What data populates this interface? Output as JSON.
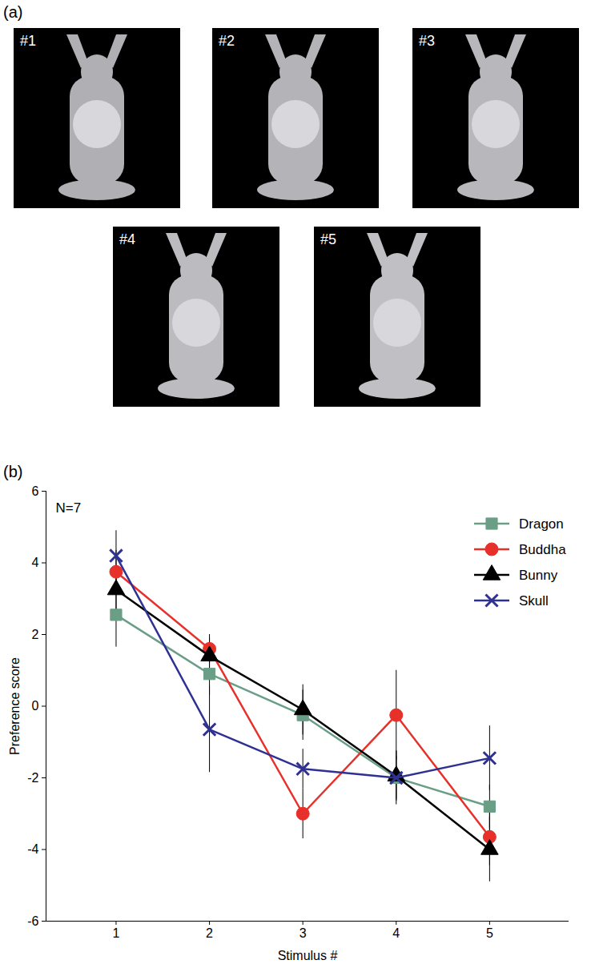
{
  "panel_labels": [
    "(a)",
    "(b)"
  ],
  "stimuli": [
    "#1",
    "#2",
    "#3",
    "#4",
    "#5"
  ],
  "chart_data": {
    "type": "line",
    "annotation": "N=7",
    "x_label": "Stimulus #",
    "y_label": "Preference score",
    "x": [
      1,
      2,
      3,
      4,
      5
    ],
    "xlim": [
      0.25,
      5.85
    ],
    "xticks": [
      1,
      2,
      3,
      4,
      5
    ],
    "ylim": [
      -6,
      6
    ],
    "yticks": [
      -6,
      -4,
      -2,
      0,
      2,
      4,
      6
    ],
    "grid": false,
    "legend": "upper right",
    "series": [
      {
        "name": "Dragon",
        "color": "#6a9e86",
        "marker": "square",
        "values": [
          2.55,
          0.9,
          -0.25,
          -2.0,
          -2.8
        ],
        "errors": [
          0.9,
          0.6,
          0.7,
          0.6,
          0.6
        ]
      },
      {
        "name": "Buddha",
        "color": "#e8302a",
        "marker": "circle",
        "values": [
          3.75,
          1.6,
          -3.0,
          -0.25,
          -3.65
        ],
        "errors": [
          0.6,
          0.4,
          0.7,
          1.25,
          0.8
        ]
      },
      {
        "name": "Bunny",
        "color": "#000000",
        "marker": "triangle",
        "values": [
          3.25,
          1.4,
          -0.1,
          -1.95,
          -4.0
        ],
        "errors": [
          0.6,
          0.5,
          0.7,
          0.7,
          0.9
        ]
      },
      {
        "name": "Skull",
        "color": "#2e3192",
        "marker": "x",
        "values": [
          4.2,
          -0.65,
          -1.75,
          -2.0,
          -1.45
        ],
        "errors": [
          0.7,
          1.2,
          0.55,
          0.75,
          0.9
        ]
      }
    ]
  }
}
